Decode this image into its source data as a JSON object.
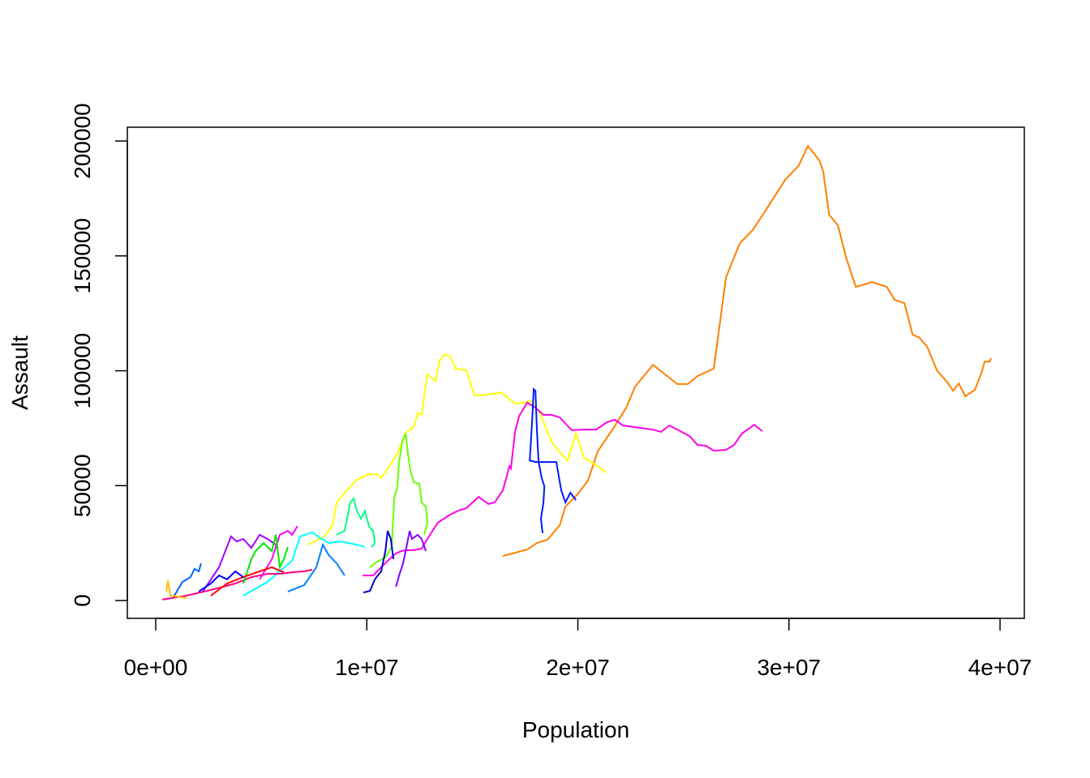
{
  "chart_data": {
    "type": "line",
    "xlabel": "Population",
    "ylabel": "Assault",
    "xlim": [
      -1345000.0,
      41150000.0
    ],
    "ylim": [
      -7760,
      206000
    ],
    "xticks": [
      {
        "value": 0,
        "label": "0e+00"
      },
      {
        "value": 10000000.0,
        "label": "1e+07"
      },
      {
        "value": 20000000.0,
        "label": "2e+07"
      },
      {
        "value": 30000000.0,
        "label": "3e+07"
      },
      {
        "value": 40000000.0,
        "label": "4e+07"
      }
    ],
    "yticks": [
      0,
      50000,
      100000,
      150000,
      200000
    ],
    "series": [
      {
        "color": "#FF7F00",
        "x": [
          16450000.0,
          17600000.0,
          18060000.0,
          18560000.0,
          19140000.0,
          19410000.0,
          19980000.0,
          20480000.0,
          20940000.0,
          21640000.0,
          22290000.0,
          22710000.0,
          23560000.0,
          24130000.0,
          24710000.0,
          25210000.0,
          25670000.0,
          26440000.0,
          27020000.0,
          27670000.0,
          28280000.0,
          29010000.0,
          29820000.0,
          30470000.0,
          30900000.0,
          31440000.0,
          31630000.0,
          31900000.0,
          32320000.0,
          32710000.0,
          33170000.0,
          33940000.0,
          34630000.0,
          35010000.0,
          35470000.0,
          35860000.0,
          36160000.0,
          36550000.0,
          37010000.0,
          37510000.0,
          37780000.0,
          38050000.0,
          38350000.0,
          38810000.0,
          39120000.0,
          39270000.0,
          39500000.0,
          39580000.0
        ],
        "values": [
          19400,
          22200,
          25000,
          26500,
          32800,
          40900,
          46200,
          52200,
          64900,
          74400,
          83900,
          93100,
          102600,
          98400,
          94200,
          94200,
          97700,
          100900,
          140700,
          155500,
          161200,
          171400,
          183100,
          189400,
          197900,
          191500,
          186600,
          167900,
          163300,
          149200,
          136500,
          138600,
          136500,
          130900,
          129400,
          115700,
          114600,
          110400,
          100200,
          94900,
          91300,
          94500,
          88900,
          91700,
          99100,
          104000,
          104000,
          105500
        ]
      },
      {
        "color": "#FFFF00",
        "x": [
          7220000.0,
          7990000.0,
          8380000.0,
          8570000.0,
          8950000.0,
          9530000.0,
          10110000.0,
          10490000.0,
          10680000.0,
          11070000.0,
          11450000.0,
          11840000.0,
          12220000.0,
          12410000.0,
          12600000.0,
          12870000.0,
          13260000.0,
          13450000.0,
          13680000.0,
          13950000.0,
          14220000.0,
          14720000.0,
          15100000.0,
          15680000.0,
          16370000.0,
          16640000.0,
          17020000.0,
          17410000.0,
          17790000.0,
          18180000.0,
          18750000.0,
          19140000.0,
          19520000.0,
          19910000.0,
          20290000.0,
          20870000.0,
          21330000.0
        ],
        "values": [
          24300,
          27900,
          32800,
          42700,
          46900,
          52600,
          55000,
          55000,
          53300,
          58500,
          63800,
          73000,
          75500,
          81500,
          80800,
          98400,
          95600,
          104400,
          107200,
          106200,
          100900,
          100200,
          89200,
          89600,
          90600,
          88500,
          85700,
          86100,
          86800,
          82200,
          69100,
          64500,
          61000,
          72700,
          62100,
          58900,
          55700
        ]
      },
      {
        "color": "#FF00E6",
        "x": [
          9800000.0,
          10300000.0,
          10680000.0,
          11070000.0,
          11380000.0,
          11640000.0,
          11840000.0,
          12220000.0,
          12600000.0,
          12990000.0,
          13370000.0,
          13950000.0,
          14330000.0,
          14720000.0,
          15300000.0,
          15760000.0,
          16060000.0,
          16450000.0,
          16760000.0,
          16830000.0,
          17020000.0,
          17220000.0,
          17600000.0,
          17990000.0,
          18370000.0,
          18750000.0,
          19140000.0,
          19710000.0,
          20290000.0,
          20870000.0,
          21370000.0,
          21750000.0,
          22140000.0,
          22980000.0,
          23560000.0,
          23940000.0,
          24330000.0,
          24710000.0,
          25290000.0,
          25670000.0,
          26060000.0,
          26440000.0,
          27020000.0,
          27400000.0,
          27780000.0,
          28360000.0,
          28740000.0
        ],
        "values": [
          10900,
          10900,
          14500,
          18000,
          20500,
          21500,
          21900,
          21900,
          22600,
          28600,
          33900,
          37400,
          39100,
          40200,
          45100,
          42000,
          42700,
          48000,
          58500,
          57500,
          73400,
          80400,
          86100,
          83900,
          80800,
          80800,
          79700,
          74100,
          74400,
          74400,
          77600,
          78700,
          76200,
          75100,
          74400,
          73400,
          76200,
          74400,
          71600,
          67700,
          67400,
          65200,
          65600,
          67700,
          72700,
          76500,
          73700
        ]
      },
      {
        "color": "#0019FF",
        "x": [
          18330000.0,
          18250000.0,
          18370000.0,
          18410000.0,
          18290000.0,
          18140000.0,
          18060000.0,
          17990000.0,
          17910000.0,
          17830000.0,
          17720000.0,
          17990000.0,
          18980000.0,
          19210000.0,
          19410000.0,
          19640000.0,
          19910000.0
        ],
        "values": [
          29300,
          35600,
          42700,
          49700,
          53300,
          60300,
          74400,
          91300,
          92000,
          77900,
          61000,
          60300,
          60300,
          48000,
          42700,
          46900,
          43700
        ]
      },
      {
        "color": "#66FF00",
        "x": [
          10150000.0,
          10490000.0,
          10880000.0,
          11180000.0,
          11300000.0,
          11450000.0,
          11530000.0,
          11680000.0,
          11840000.0,
          11950000.0,
          12070000.0,
          12220000.0,
          12490000.0,
          12600000.0,
          12800000.0,
          12870000.0,
          12720000.0
        ],
        "values": [
          14500,
          16900,
          18700,
          23300,
          44400,
          49700,
          60300,
          69100,
          72700,
          63800,
          56800,
          51500,
          50800,
          42700,
          40900,
          33900,
          28600
        ]
      },
      {
        "color": "#00FF80",
        "x": [
          8570000.0,
          8950000.0,
          9220000.0,
          9380000.0,
          9530000.0,
          9720000.0,
          9910000.0,
          10110000.0,
          10300000.0,
          10380000.0,
          10220000.0
        ],
        "values": [
          28600,
          30300,
          42700,
          44400,
          39100,
          35600,
          39100,
          32100,
          30300,
          25000,
          23300
        ]
      },
      {
        "color": "#0000CC",
        "x": [
          9840000.0,
          10150000.0,
          10380000.0,
          10680000.0,
          10880000.0,
          10990000.0,
          11140000.0,
          11260000.0
        ],
        "values": [
          3500,
          4200,
          9200,
          12700,
          21500,
          30300,
          26800,
          18000
        ]
      },
      {
        "color": "#8000FF",
        "x": [
          11380000.0,
          11530000.0,
          11720000.0,
          11840000.0,
          12030000.0,
          12140000.0,
          12410000.0,
          12600000.0,
          12800000.0
        ],
        "values": [
          6000,
          10900,
          16200,
          21500,
          30300,
          26800,
          28600,
          26800,
          21500
        ]
      },
      {
        "color": "#00FFFF",
        "x": [
          4150000.0,
          5300000.0,
          5880000.0,
          6460000.0,
          6840000.0,
          7420000.0,
          7800000.0,
          8190000.0,
          8760000.0,
          9150000.0,
          9530000.0,
          9910000.0
        ],
        "values": [
          2100,
          8100,
          12700,
          17300,
          27900,
          29600,
          27200,
          25000,
          25700,
          25000,
          24300,
          23300
        ]
      },
      {
        "color": "#FF0080",
        "x": [
          310000.0,
          1460000.0,
          2610000.0,
          3770000.0,
          4530000.0,
          5300000.0,
          5880000.0,
          6460000.0,
          7030000.0,
          7420000.0
        ],
        "values": [
          400,
          2100,
          4600,
          7400,
          10200,
          11600,
          11600,
          12300,
          12700,
          13400
        ]
      },
      {
        "color": "#A000FF",
        "x": [
          2230000.0,
          3000000.0,
          3570000.0,
          3840000.0,
          4150000.0,
          4530000.0,
          4920000.0,
          5300000.0,
          5690000.0
        ],
        "values": [
          3900,
          14500,
          27900,
          25700,
          26800,
          22900,
          28600,
          26800,
          24300
        ]
      },
      {
        "color": "#FF00FF",
        "x": [
          4920000.0,
          5500000.0,
          5880000.0,
          6260000.0,
          6460000.0,
          6720000.0
        ],
        "values": [
          9200,
          18000,
          28600,
          30300,
          28600,
          32400
        ]
      },
      {
        "color": "#00E600",
        "x": [
          4150000.0,
          4530000.0,
          4730000.0,
          5110000.0,
          5500000.0,
          5690000.0,
          5880000.0,
          6070000.0,
          6260000.0
        ],
        "values": [
          7400,
          18000,
          21500,
          25000,
          21500,
          28600,
          14500,
          18000,
          23300
        ]
      },
      {
        "color": "#0066FF",
        "x": [
          880000.0,
          1270000.0,
          1650000.0,
          1840000.0,
          2040000.0,
          2150000.0
        ],
        "values": [
          2100,
          8100,
          10200,
          13800,
          12700,
          16200
        ]
      },
      {
        "color": "#0080FF",
        "x": [
          6260000.0,
          7030000.0,
          7610000.0,
          7920000.0,
          8190000.0,
          8570000.0,
          8950000.0
        ],
        "values": [
          3900,
          6700,
          14500,
          24300,
          19800,
          16200,
          10900
        ]
      },
      {
        "color": "#FFBF00",
        "x": [
          500000.0,
          580000.0,
          690000.0,
          1460000.0
        ],
        "values": [
          3900,
          8800,
          2100,
          1100
        ]
      },
      {
        "color": "#FF0000",
        "x": [
          2610000.0,
          3380000.0,
          4150000.0,
          4920000.0,
          5500000.0,
          6070000.0
        ],
        "values": [
          2100,
          7400,
          10200,
          12700,
          14500,
          12300
        ]
      },
      {
        "color": "#0000FF",
        "x": [
          2040000.0,
          2610000.0,
          3000000.0,
          3380000.0,
          3770000.0,
          4150000.0
        ],
        "values": [
          3900,
          7400,
          10900,
          9200,
          12700,
          10200
        ]
      }
    ]
  }
}
